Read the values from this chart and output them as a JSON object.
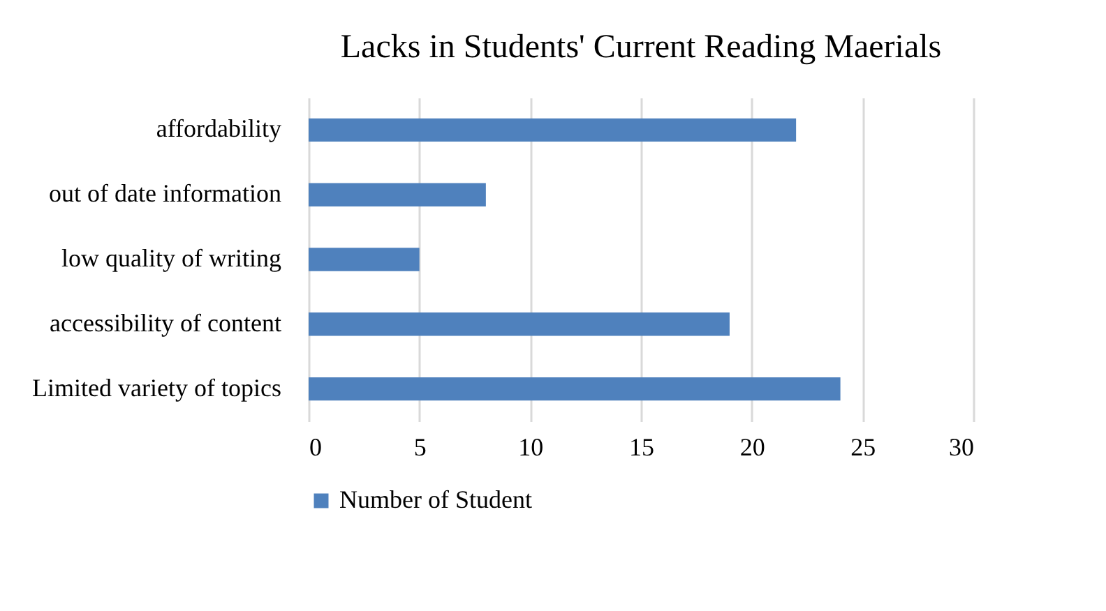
{
  "chart_data": {
    "type": "bar",
    "orientation": "horizontal",
    "title": "Lacks in Students' Current Reading Maerials",
    "categories": [
      "affordability",
      "out of date information",
      "low quality of writing",
      "accessibility of content",
      "Limited variety of topics"
    ],
    "series": [
      {
        "name": "Number of Student",
        "color": "#4f81bd",
        "values": [
          22,
          8,
          5,
          19,
          24
        ]
      }
    ],
    "xlim": [
      0,
      30
    ],
    "xticks": [
      0,
      5,
      10,
      15,
      20,
      25,
      30
    ],
    "grid": "x",
    "legend": "bottom"
  }
}
